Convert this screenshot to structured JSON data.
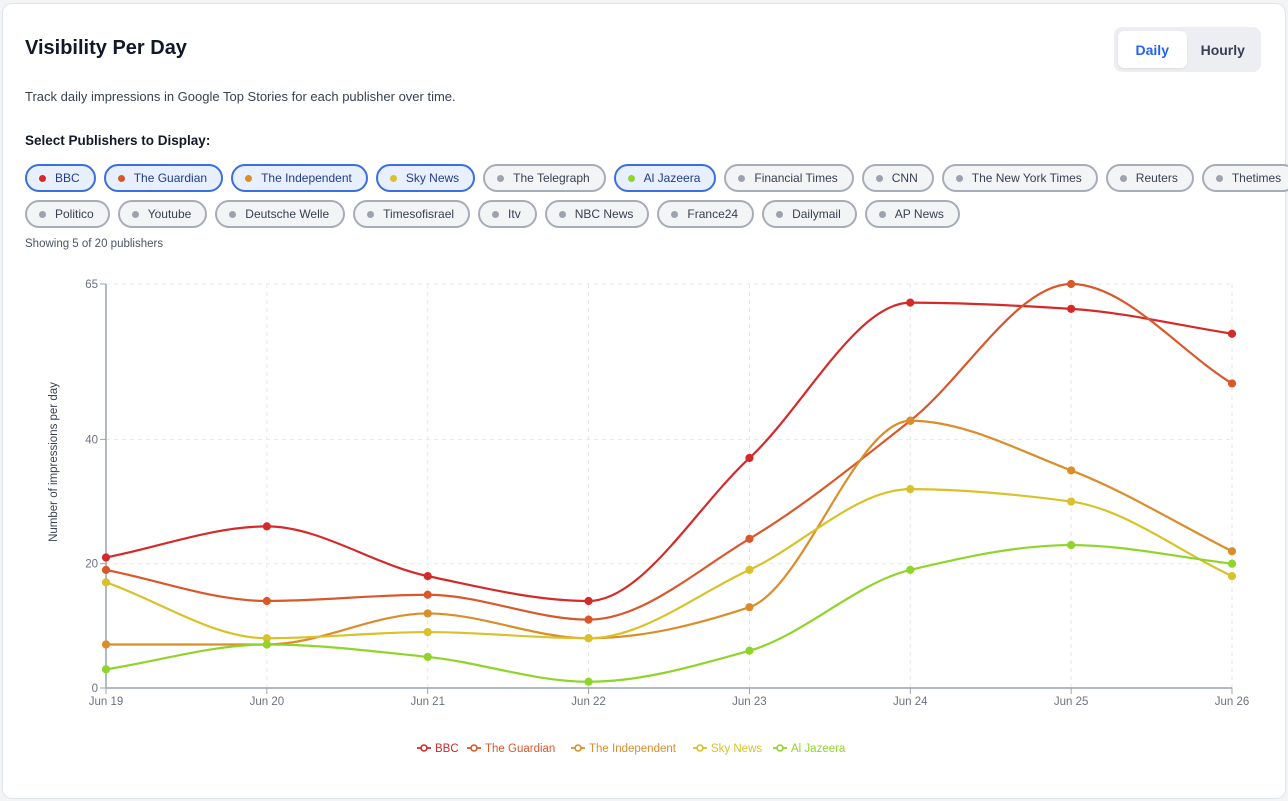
{
  "header": {
    "title": "Visibility Per Day",
    "toggle": {
      "daily": "Daily",
      "hourly": "Hourly",
      "active": "daily"
    },
    "description": "Track daily impressions in Google Top Stories for each publisher over time.",
    "select_label": "Select Publishers to Display:",
    "showing_text": "Showing 5 of 20 publishers"
  },
  "publishers_row1": [
    {
      "name": "BBC",
      "selected": true,
      "color": "#d42a2a"
    },
    {
      "name": "The Guardian",
      "selected": true,
      "color": "#d9582b"
    },
    {
      "name": "The Independent",
      "selected": true,
      "color": "#db8d2a"
    },
    {
      "name": "Sky News",
      "selected": true,
      "color": "#d9c12a"
    },
    {
      "name": "The Telegraph",
      "selected": false,
      "color": "#9ca3af"
    },
    {
      "name": "Al Jazeera",
      "selected": true,
      "color": "#8fd42a"
    },
    {
      "name": "Financial Times",
      "selected": false,
      "color": "#9ca3af"
    },
    {
      "name": "CNN",
      "selected": false,
      "color": "#9ca3af"
    },
    {
      "name": "The New York Times",
      "selected": false,
      "color": "#9ca3af"
    },
    {
      "name": "Reuters",
      "selected": false,
      "color": "#9ca3af"
    },
    {
      "name": "Thetimes",
      "selected": false,
      "color": "#9ca3af"
    }
  ],
  "publishers_row2": [
    {
      "name": "Politico",
      "selected": false,
      "color": "#9ca3af"
    },
    {
      "name": "Youtube",
      "selected": false,
      "color": "#9ca3af"
    },
    {
      "name": "Deutsche Welle",
      "selected": false,
      "color": "#9ca3af"
    },
    {
      "name": "Timesofisrael",
      "selected": false,
      "color": "#9ca3af"
    },
    {
      "name": "Itv",
      "selected": false,
      "color": "#9ca3af"
    },
    {
      "name": "NBC News",
      "selected": false,
      "color": "#9ca3af"
    },
    {
      "name": "France24",
      "selected": false,
      "color": "#9ca3af"
    },
    {
      "name": "Dailymail",
      "selected": false,
      "color": "#9ca3af"
    },
    {
      "name": "AP News",
      "selected": false,
      "color": "#9ca3af"
    }
  ],
  "chart_data": {
    "type": "line",
    "title": "",
    "xlabel": "",
    "ylabel": "Number of impressions per day",
    "categories": [
      "Jun 19",
      "Jun 20",
      "Jun 21",
      "Jun 22",
      "Jun 23",
      "Jun 24",
      "Jun 25",
      "Jun 26"
    ],
    "yticks": [
      0,
      20,
      40,
      65
    ],
    "ylim": [
      0,
      65
    ],
    "grid": true,
    "legend_position": "bottom",
    "series": [
      {
        "name": "BBC",
        "color": "#d42a2a",
        "values": [
          21,
          26,
          18,
          14,
          37,
          62,
          61,
          57
        ]
      },
      {
        "name": "The Guardian",
        "color": "#d9582b",
        "values": [
          19,
          14,
          15,
          11,
          24,
          43,
          65,
          49
        ]
      },
      {
        "name": "The Independent",
        "color": "#db8d2a",
        "values": [
          7,
          7,
          12,
          8,
          13,
          43,
          35,
          22
        ]
      },
      {
        "name": "Sky News",
        "color": "#d9c12a",
        "values": [
          17,
          8,
          9,
          8,
          19,
          32,
          30,
          18
        ]
      },
      {
        "name": "Al Jazeera",
        "color": "#8fd42a",
        "values": [
          3,
          7,
          5,
          1,
          6,
          19,
          23,
          20
        ]
      }
    ]
  }
}
